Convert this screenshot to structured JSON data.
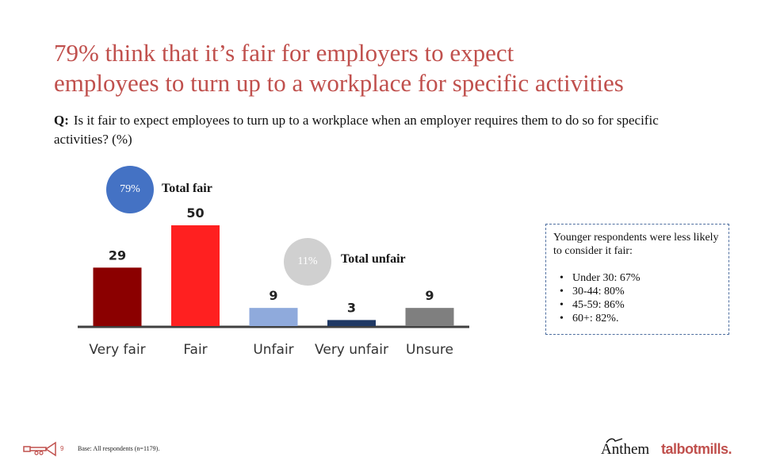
{
  "title": {
    "line1": "79% think that it’s fair for employers to expect",
    "line2": "employees to turn up to a workplace for specific activities"
  },
  "question": {
    "prefix": "Q:",
    "text": "Is it fair to expect employees to turn up to a workplace when an employer requires them to do so for specific activities? (%)"
  },
  "summary": {
    "total_fair_pct": "79%",
    "total_fair_label": "Total fair",
    "total_unfair_pct": "11%",
    "total_unfair_label": "Total unfair"
  },
  "note": {
    "intro": "Younger respondents were less likely to consider it fair:",
    "items": [
      "Under 30: 67%",
      "30-44: 80%",
      "45-59: 86%",
      "60+: 82%."
    ]
  },
  "footer": {
    "page_number": "9",
    "base": "Base: All respondents (n=1179)."
  },
  "logos": {
    "anthem": "Anthem",
    "talbot_main": "talbotmills",
    "talbot_dot": "."
  },
  "colors": {
    "title": "#c0504d",
    "fair_bubble": "#4472c4",
    "unfair_bubble": "#d0d0d0"
  },
  "chart_data": {
    "type": "bar",
    "categories": [
      "Very fair",
      "Fair",
      "Unfair",
      "Very unfair",
      "Unsure"
    ],
    "values": [
      29,
      50,
      9,
      3,
      9
    ],
    "colors": [
      "#8b0000",
      "#ff2020",
      "#8faadc",
      "#1f3864",
      "#7f7f7f"
    ],
    "ylim": [
      0,
      50
    ],
    "grid": false,
    "legend": "none"
  }
}
